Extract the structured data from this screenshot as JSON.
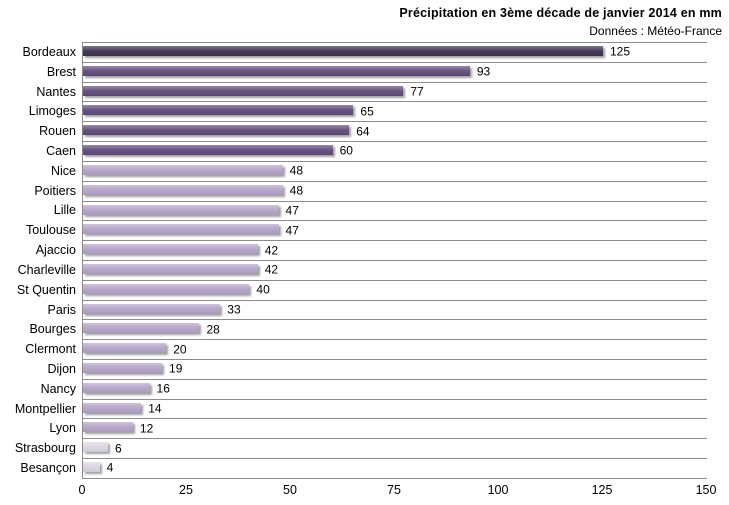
{
  "chart_data": {
    "type": "bar",
    "orientation": "horizontal",
    "title": "Précipitation en 3ème décade de janvier 2014 en mm",
    "subtitle": "Données : Météo-France",
    "categories": [
      "Bordeaux",
      "Brest",
      "Nantes",
      "Limoges",
      "Rouen",
      "Caen",
      "Nice",
      "Poitiers",
      "Lille",
      "Toulouse",
      "Ajaccio",
      "Charleville",
      "St Quentin",
      "Paris",
      "Bourges",
      "Clermont",
      "Dijon",
      "Nancy",
      "Montpellier",
      "Lyon",
      "Strasbourg",
      "Besançon"
    ],
    "values": [
      125,
      93,
      77,
      65,
      64,
      60,
      48,
      48,
      47,
      47,
      42,
      42,
      40,
      33,
      28,
      20,
      19,
      16,
      14,
      12,
      6,
      4
    ],
    "bar_colors": [
      "#3F3151",
      "#604A7B",
      "#604A7B",
      "#604A7B",
      "#604A7B",
      "#604A7B",
      "#B3A2C7",
      "#B3A2C7",
      "#B3A2C7",
      "#B3A2C7",
      "#B3A2C7",
      "#B3A2C7",
      "#B3A2C7",
      "#B3A2C7",
      "#B3A2C7",
      "#B3A2C7",
      "#B3A2C7",
      "#B3A2C7",
      "#B3A2C7",
      "#B3A2C7",
      "#DAD4E2",
      "#DAD4E2"
    ],
    "xlabel": "",
    "ylabel": "",
    "xlim": [
      0,
      150
    ],
    "x_ticks": [
      0,
      25,
      50,
      75,
      100,
      125,
      150
    ],
    "grid": "horizontal category separators only",
    "gridline_color": "#8C8C8C",
    "legend": "none",
    "data_labels": "shown at end of each bar"
  }
}
